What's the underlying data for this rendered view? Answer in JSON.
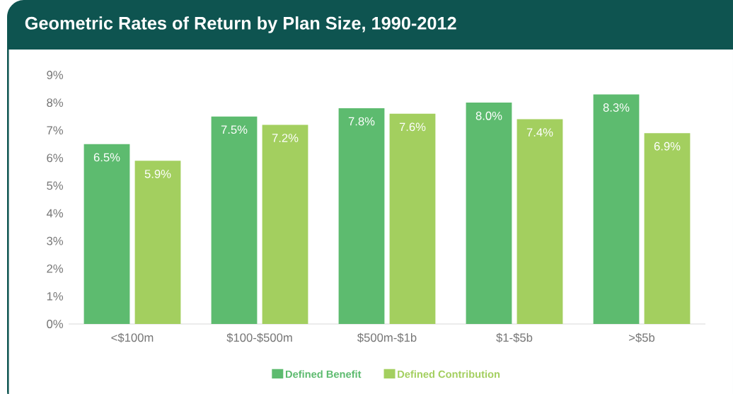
{
  "chart_data": {
    "type": "bar",
    "title": "Geometric Rates of Return by Plan Size, 1990-2012",
    "categories": [
      "<$100m",
      "$100-$500m",
      "$500m-$1b",
      "$1-$5b",
      ">$5b"
    ],
    "series": [
      {
        "name": "Defined Benefit",
        "color": "#5dbb6f",
        "values": [
          6.5,
          7.5,
          7.8,
          8.0,
          8.3
        ],
        "value_labels": [
          "6.5%",
          "7.5%",
          "7.8%",
          "8.0%",
          "8.3%"
        ]
      },
      {
        "name": "Defined Contribution",
        "color": "#a3cf5f",
        "values": [
          5.9,
          7.2,
          7.6,
          7.4,
          6.9
        ],
        "value_labels": [
          "5.9%",
          "7.2%",
          "7.6%",
          "7.4%",
          "6.9%"
        ]
      }
    ],
    "ylim": [
      0,
      9
    ],
    "yticks": [
      {
        "value": 0,
        "label": "0%"
      },
      {
        "value": 1,
        "label": "1%"
      },
      {
        "value": 2,
        "label": "2%"
      },
      {
        "value": 3,
        "label": "3%"
      },
      {
        "value": 4,
        "label": "4%"
      },
      {
        "value": 5,
        "label": "5%"
      },
      {
        "value": 6,
        "label": "6%"
      },
      {
        "value": 7,
        "label": "7%"
      },
      {
        "value": 8,
        "label": "8%"
      },
      {
        "value": 9,
        "label": "9%"
      }
    ],
    "legend": "bottom"
  }
}
